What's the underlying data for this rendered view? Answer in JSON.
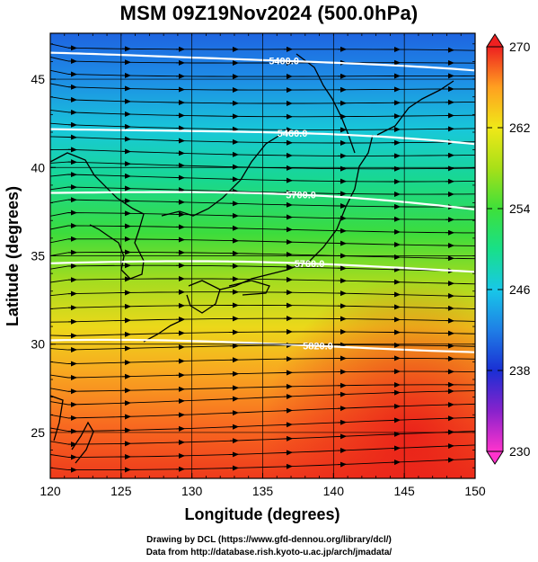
{
  "title": "MSM 09Z19Nov2024 (500.0hPa)",
  "x_axis": {
    "label": "Longitude (degrees)",
    "range": [
      120,
      150
    ],
    "ticks": [
      "120",
      "125",
      "130",
      "135",
      "140",
      "145",
      "150"
    ]
  },
  "y_axis": {
    "label": "Latitude  (degrees)",
    "range": [
      22.4,
      47.6
    ],
    "ticks": [
      "25",
      "30",
      "35",
      "40",
      "45"
    ]
  },
  "colorbar": {
    "range": [
      230,
      270
    ],
    "ticks": [
      "270",
      "262",
      "254",
      "246",
      "238",
      "230"
    ],
    "colors": [
      "#ff33cc",
      "#8822cc",
      "#1a2fd4",
      "#1f7fe6",
      "#18c8e8",
      "#18e088",
      "#3ee03a",
      "#a8e018",
      "#f0e818",
      "#ffa020",
      "#ff5020",
      "#ee2020"
    ]
  },
  "contours": [
    {
      "label": "5400.0",
      "lat": 46.5
    },
    {
      "label": "5460.0",
      "lat": 42.3
    },
    {
      "label": "5700.0",
      "lat": 38.7
    },
    {
      "label": "5760.0",
      "lat": 34.6
    },
    {
      "label": "5820.0",
      "lat": 30.1
    }
  ],
  "credits": {
    "line1": "Drawing by DCL (https://www.gfd-dennou.org/library/dcl/)",
    "line2": "Data from http://database.rish.kyoto-u.ac.jp/arch/jmadata/"
  }
}
